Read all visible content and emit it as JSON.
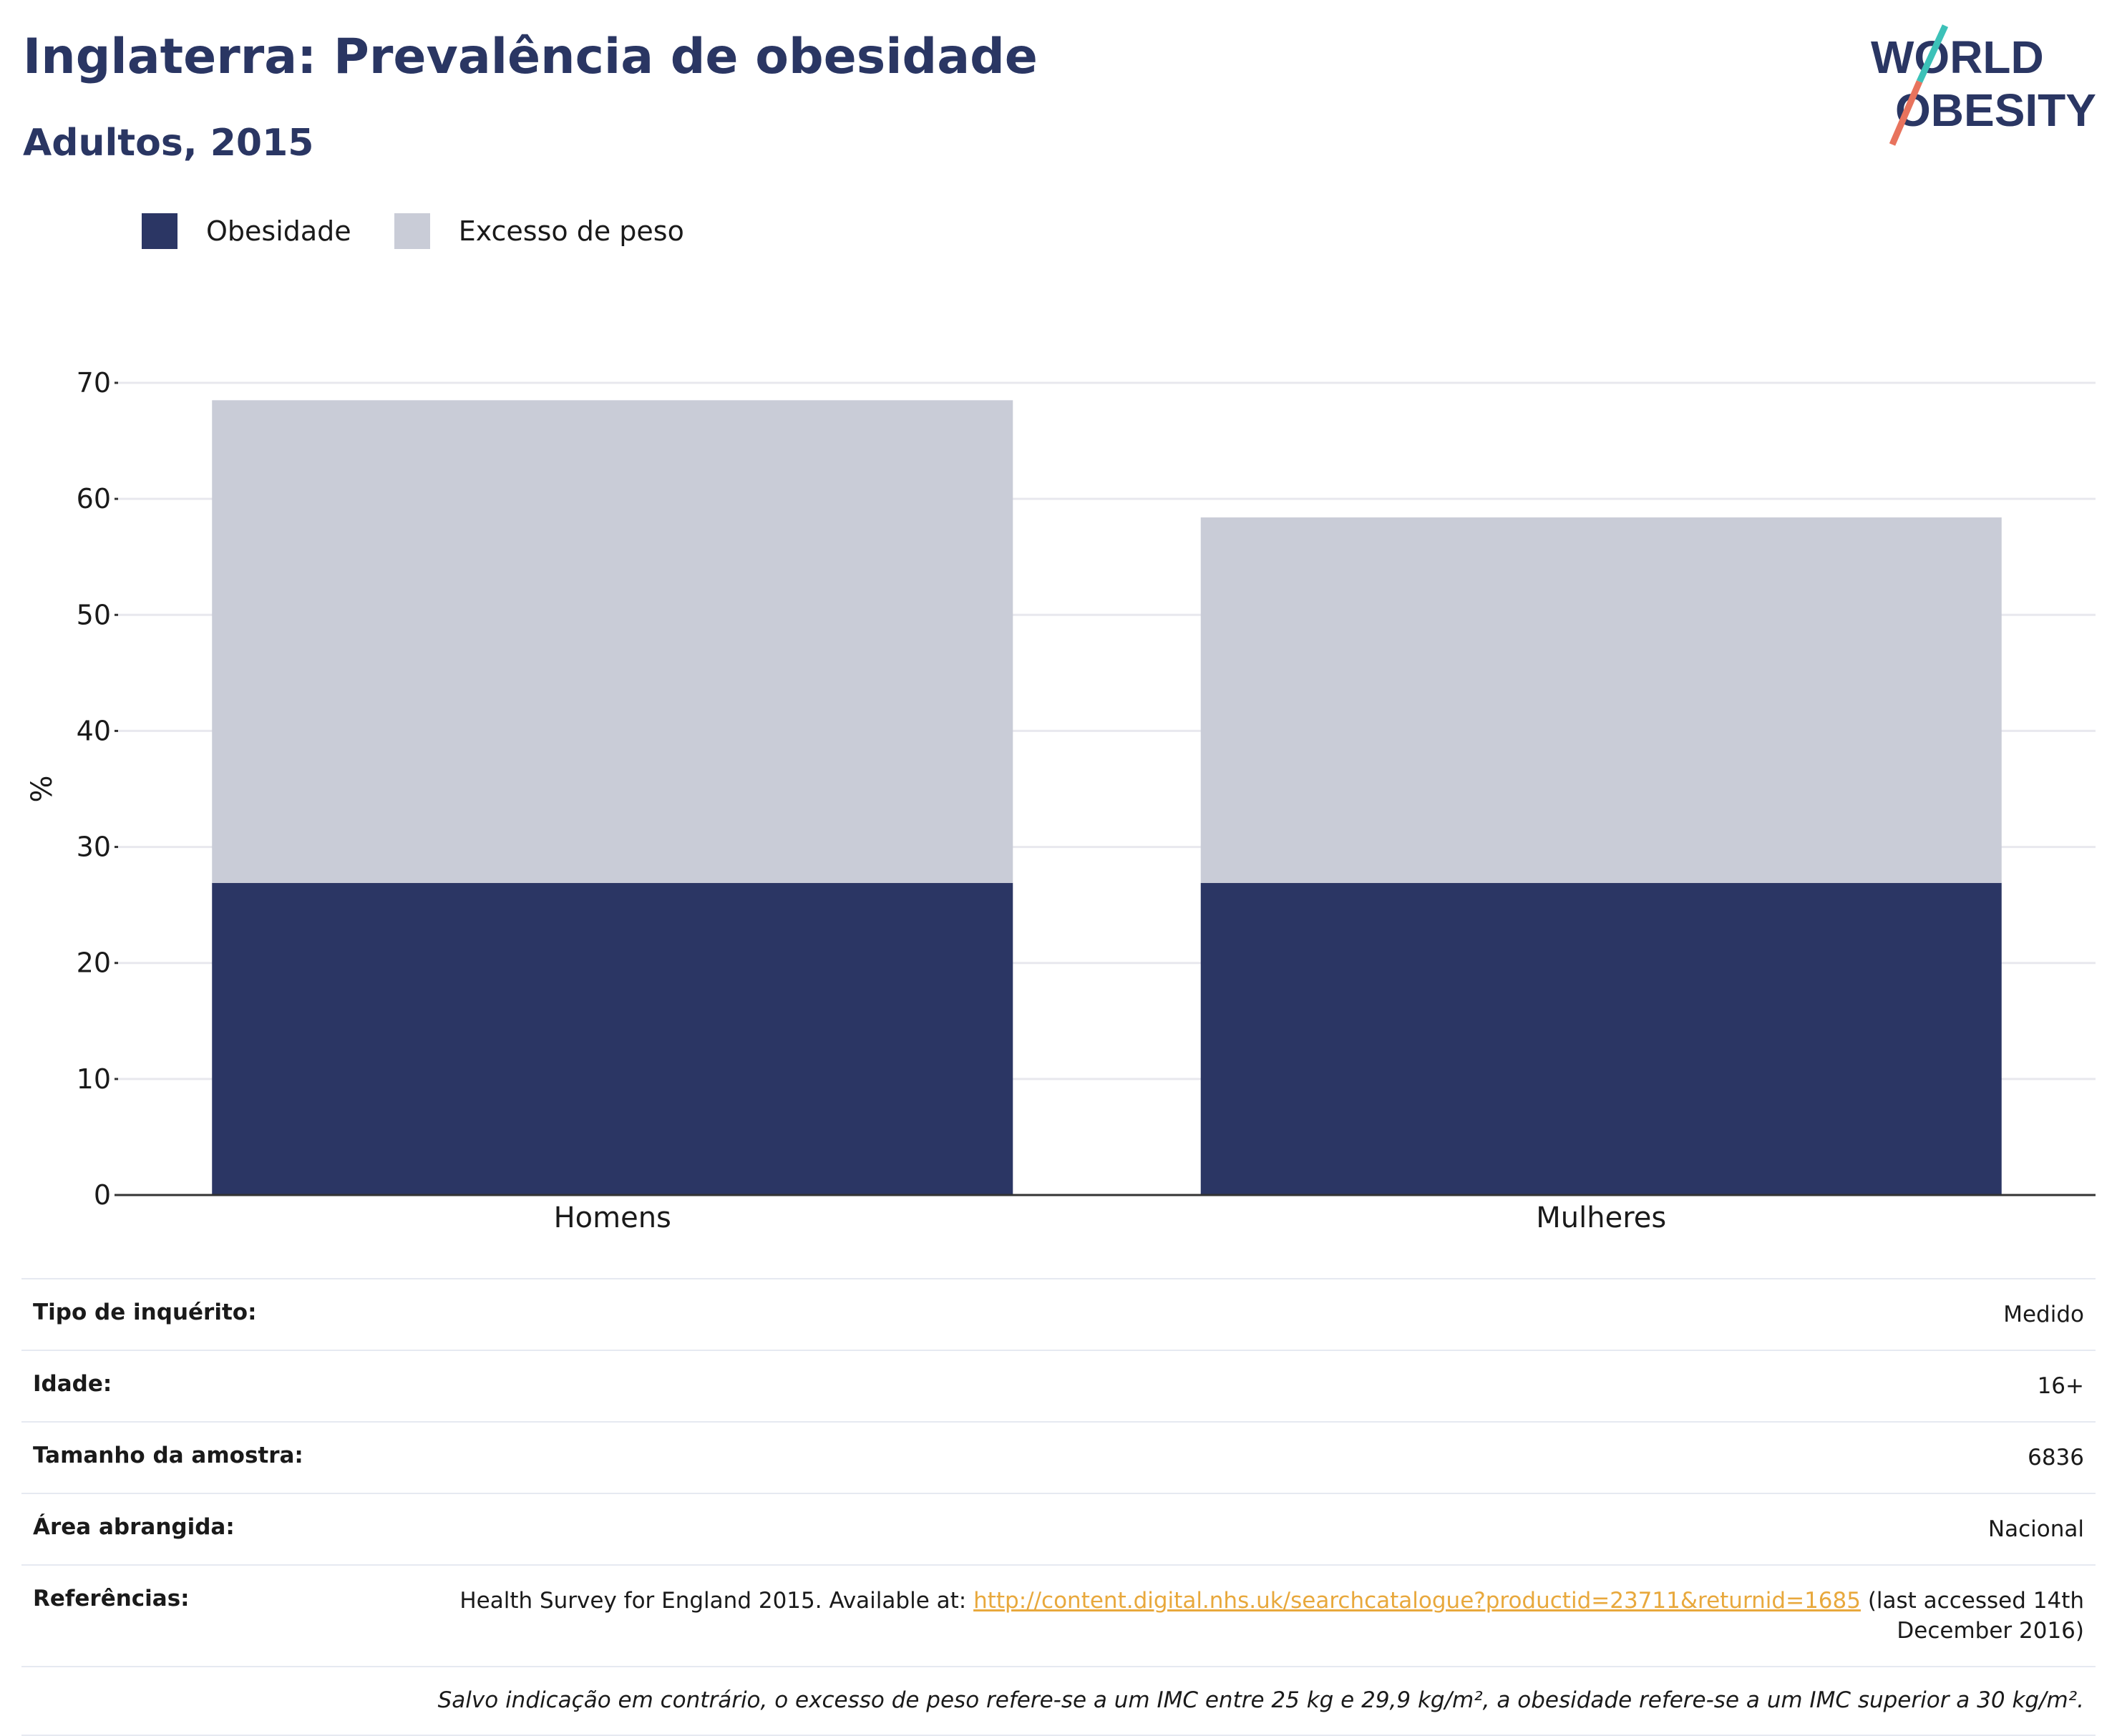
{
  "header": {
    "title": "Inglaterra: Prevalência de obesidade",
    "subtitle": "Adultos, 2015",
    "logo_line1": "WORLD",
    "logo_line2": "OBESITY"
  },
  "legend": {
    "items": [
      {
        "label": "Obesidade",
        "color": "#2b3664"
      },
      {
        "label": "Excesso de peso",
        "color": "#c9ccd7"
      }
    ]
  },
  "chart_data": {
    "type": "bar",
    "stacked": true,
    "categories": [
      "Homens",
      "Mulheres"
    ],
    "series": [
      {
        "name": "Obesidade",
        "color": "#2b3664",
        "values": [
          26.9,
          26.9
        ]
      },
      {
        "name": "Excesso de peso",
        "color": "#c9ccd7",
        "values": [
          41.6,
          31.5
        ]
      }
    ],
    "xlabel": "",
    "ylabel": "%",
    "ylim": [
      0,
      70
    ],
    "yticks": [
      0,
      10,
      20,
      30,
      40,
      50,
      60,
      70
    ],
    "grid": true,
    "legend_position": "top-left"
  },
  "meta": {
    "rows": [
      {
        "label": "Tipo de inquérito:",
        "value": "Medido"
      },
      {
        "label": "Idade:",
        "value": "16+"
      },
      {
        "label": "Tamanho da amostra:",
        "value": "6836"
      },
      {
        "label": "Área abrangida:",
        "value": "Nacional"
      }
    ],
    "references": {
      "label": "Referências:",
      "text_before": "Health Survey for England 2015. Available at: ",
      "link": "http://content.digital.nhs.uk/searchcatalogue?productid=23711&returnid=1685",
      "text_after": " (last accessed 14th December 2016)"
    },
    "note": "Salvo indicação em contrário, o excesso de peso refere-se a um IMC entre 25 kg e 29,9 kg/m², a obesidade refere-se a um IMC superior a 30 kg/m²."
  },
  "colors": {
    "title": "#2a3663",
    "logo_teal": "#3cc1b8",
    "logo_coral": "#e8735d",
    "link": "#e8a83c"
  }
}
